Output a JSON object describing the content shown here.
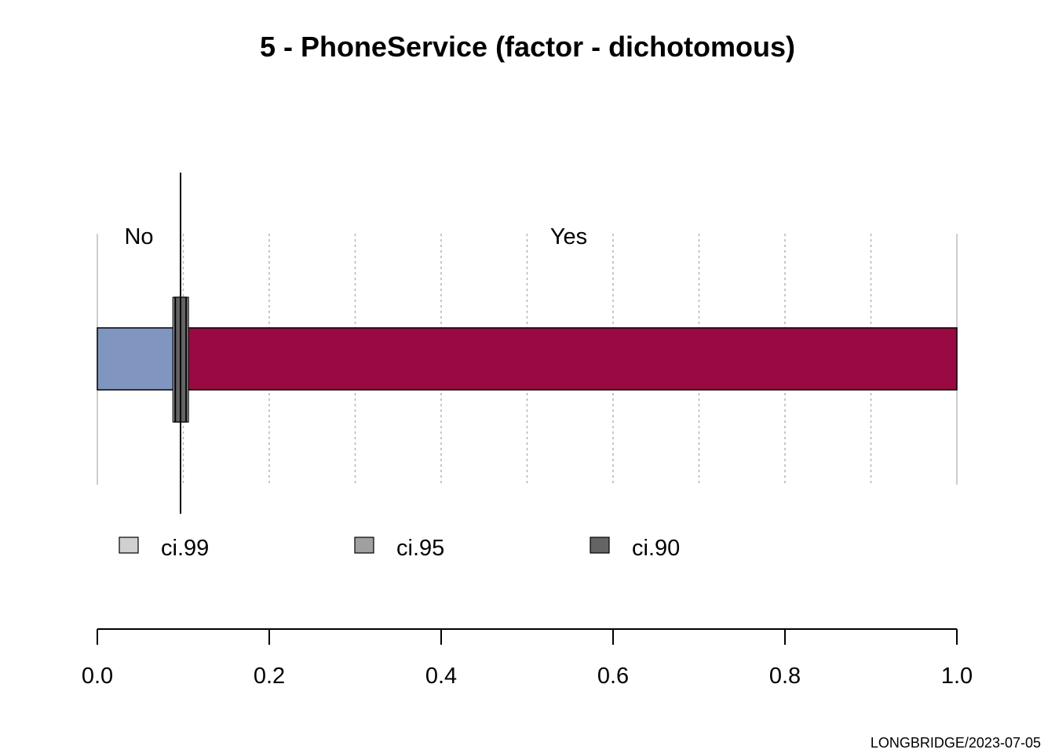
{
  "chart_data": {
    "type": "bar",
    "orientation": "horizontal-stacked-proportion",
    "title": "5 - PhoneService (factor - dichotomous)",
    "xlabel": "",
    "ylabel": "",
    "xlim": [
      0,
      1
    ],
    "x_ticks": [
      0.0,
      0.2,
      0.4,
      0.6,
      0.8,
      1.0
    ],
    "x_tick_labels": [
      "0.0",
      "0.2",
      "0.4",
      "0.6",
      "0.8",
      "1.0"
    ],
    "grid": true,
    "categories": [
      "No",
      "Yes"
    ],
    "values": [
      0.0968,
      0.9032
    ],
    "colors": [
      "#8096C0",
      "#990A42"
    ],
    "confidence_intervals": [
      {
        "name": "ci.99",
        "lower": 0.088,
        "upper": 0.106,
        "color": "#D0D0D0"
      },
      {
        "name": "ci.95",
        "lower": 0.09,
        "upper": 0.104,
        "color": "#A0A0A0"
      },
      {
        "name": "ci.90",
        "lower": 0.091,
        "upper": 0.103,
        "color": "#646464"
      }
    ],
    "reference_line": 0.0968,
    "legend": {
      "position": "bottom",
      "items": [
        "ci.99",
        "ci.95",
        "ci.90"
      ]
    },
    "footer": "LONGBRIDGE/2023-07-05"
  }
}
